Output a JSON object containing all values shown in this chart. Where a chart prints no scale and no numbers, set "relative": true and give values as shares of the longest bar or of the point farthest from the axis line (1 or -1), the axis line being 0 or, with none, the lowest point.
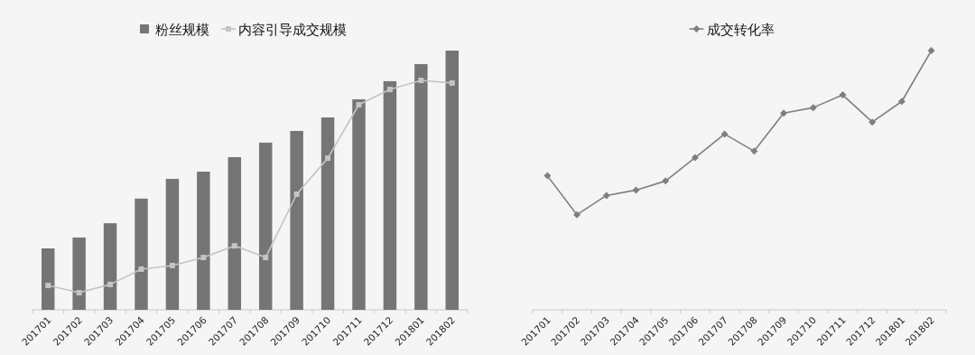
{
  "chart_data": [
    {
      "type": "bar",
      "relative": true,
      "legend": "top",
      "categories": [
        "201701",
        "201702",
        "201703",
        "201704",
        "201705",
        "201706",
        "201707",
        "201708",
        "201709",
        "201710",
        "201711",
        "201712",
        "201801",
        "201802"
      ],
      "series": [
        {
          "name": "粉丝规模",
          "color": "#767576",
          "values": [
            0.237,
            0.279,
            0.334,
            0.429,
            0.505,
            0.533,
            0.589,
            0.645,
            0.69,
            0.742,
            0.812,
            0.882,
            0.948,
            1
          ]
        },
        {
          "name": "内容引导成交规模",
          "type": "line",
          "marker": "square",
          "color": "#c4c4c4",
          "values": [
            0.094,
            0.066,
            0.098,
            0.157,
            0.171,
            0.202,
            0.247,
            0.202,
            0.446,
            0.585,
            0.791,
            0.85,
            0.885,
            0.875
          ]
        }
      ]
    },
    {
      "type": "line",
      "relative": true,
      "legend": "top",
      "marker": "diamond",
      "categories": [
        "201701",
        "201702",
        "201703",
        "201704",
        "201705",
        "201706",
        "201707",
        "201708",
        "201709",
        "201710",
        "201711",
        "201712",
        "201801",
        "201802"
      ],
      "series": [
        {
          "name": "成交转化率",
          "color": "#7f7f7f",
          "values": [
            0.517,
            0.367,
            0.441,
            0.462,
            0.497,
            0.587,
            0.678,
            0.612,
            0.759,
            0.78,
            0.829,
            0.724,
            0.804,
            1
          ]
        }
      ]
    }
  ]
}
